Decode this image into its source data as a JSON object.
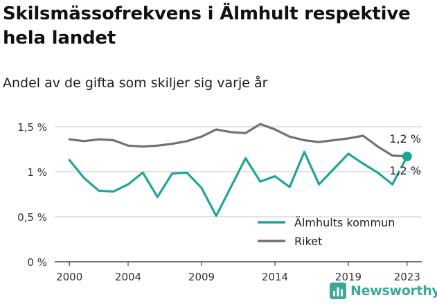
{
  "title": "Skilsmässofrekvens i Älmhult respektive hela landet",
  "subtitle": "Andel av de gifta som skiljer sig varje år",
  "brand": {
    "name": "Newsworthy",
    "icon": "bar-chart-logo-icon"
  },
  "chart_data": {
    "type": "line",
    "title": "Skilsmässofrekvens i Älmhult respektive hela landet",
    "subtitle": "Andel av de gifta som skiljer sig varje år",
    "xlabel": "",
    "ylabel": "",
    "xlim": [
      1999,
      2024
    ],
    "ylim": [
      0,
      1.5
    ],
    "x_ticks": [
      2000,
      2004,
      2009,
      2014,
      2019,
      2023
    ],
    "y_ticks": [
      {
        "value": 0,
        "label": "0 %"
      },
      {
        "value": 0.5,
        "label": "0,5 %"
      },
      {
        "value": 1,
        "label": "1 %"
      },
      {
        "value": 1.5,
        "label": "1,5 %"
      }
    ],
    "grid": "horizontal",
    "legend_position": "bottom-right",
    "x": [
      2000,
      2001,
      2002,
      2003,
      2004,
      2005,
      2006,
      2007,
      2008,
      2009,
      2010,
      2011,
      2012,
      2013,
      2014,
      2015,
      2016,
      2017,
      2018,
      2019,
      2020,
      2021,
      2022,
      2023
    ],
    "series": [
      {
        "name": "Älmhults kommun",
        "color": "#1fa598",
        "values": [
          1.13,
          0.93,
          0.79,
          0.78,
          0.86,
          0.99,
          0.72,
          0.98,
          0.99,
          0.82,
          0.51,
          0.83,
          1.15,
          0.89,
          0.95,
          0.83,
          1.22,
          0.86,
          1.03,
          1.2,
          1.09,
          0.99,
          0.86,
          1.17
        ],
        "end_label": "1,2 %"
      },
      {
        "name": "Riket",
        "color": "#717173",
        "values": [
          1.36,
          1.34,
          1.36,
          1.35,
          1.29,
          1.28,
          1.29,
          1.31,
          1.34,
          1.39,
          1.47,
          1.44,
          1.43,
          1.53,
          1.47,
          1.39,
          1.35,
          1.33,
          1.35,
          1.37,
          1.4,
          1.28,
          1.18,
          1.17
        ],
        "end_label": "1,2 %"
      }
    ]
  }
}
